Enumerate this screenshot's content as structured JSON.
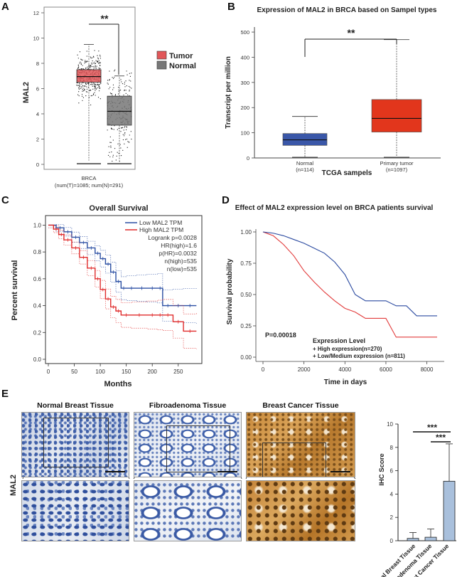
{
  "panels": {
    "A": {
      "label": "A",
      "ylabel": "MAL2",
      "yticks": [
        "0",
        "2",
        "4",
        "6",
        "8",
        "10",
        "12"
      ],
      "sig": "**",
      "xlabel": "BRCA",
      "xsub": "(num(T)=1085; num(N)=291)",
      "legend": [
        {
          "name": "Tumor",
          "color": "#e15759"
        },
        {
          "name": "Normal",
          "color": "#777777"
        }
      ]
    },
    "B": {
      "label": "B",
      "title": "Expression of MAL2 in BRCA based on Sampel types",
      "ylabel": "Transcript per million",
      "yticks": [
        "0",
        "100",
        "200",
        "300",
        "400",
        "500"
      ],
      "sig": "**",
      "categories": [
        "Normal",
        "Primary tumor"
      ],
      "counts": [
        "(n=114)",
        "(n=1097)"
      ],
      "xlabel": "TCGA sampels"
    },
    "C": {
      "label": "C",
      "title": "Overall Survival",
      "ylabel": "Percent survival",
      "xlabel": "Months",
      "xticks": [
        "0",
        "50",
        "100",
        "150",
        "200",
        "250"
      ],
      "yticks": [
        "0.0",
        "0.2",
        "0.4",
        "0.6",
        "0.8",
        "1.0"
      ],
      "legend": [
        "Low MAL2 TPM",
        "High MAL2 TPM"
      ],
      "stats": [
        "Logrank p=0.0028",
        "HR(high)=1.6",
        "p(HR)=0.0032",
        "n(high)=535",
        "n(low)=535"
      ]
    },
    "D": {
      "label": "D",
      "title": "Effect of MAL2 expression level on BRCA patients survival",
      "ylabel": "Survival probability",
      "xlabel": "Time in days",
      "xticks": [
        "0",
        "2000",
        "4000",
        "6000",
        "8000"
      ],
      "yticks": [
        "0.00",
        "0.25",
        "0.50",
        "0.75",
        "1.00"
      ],
      "pvalue": "P=0.00018",
      "legend_title": "Expression Level",
      "legend": [
        "+ High expression(n=270)",
        "+ Low/Medium expression (n=811)"
      ]
    },
    "E": {
      "label": "E",
      "row_label": "MAL2",
      "tissues": [
        "Normal Breast Tissue",
        "Fibroadenoma Tissue",
        "Breast Cancer Tissue"
      ],
      "bar_ylabel": "IHC Score",
      "bar_yticks": [
        "0",
        "2",
        "4",
        "6",
        "8",
        "10"
      ],
      "sig1": "***",
      "sig2": "***"
    }
  },
  "colors": {
    "tumor": "#e15759",
    "normal_grey": "#777777",
    "boxB_normal": "#3a57a8",
    "boxB_tumor": "#e2361c",
    "low_blue": "#2b4fa3",
    "high_red": "#e02b2b",
    "bar_fill": "#a9c0dc"
  },
  "chart_data": [
    {
      "type": "box",
      "panel": "A",
      "categories": [
        "Tumor",
        "Normal"
      ],
      "series": [
        {
          "name": "Tumor",
          "q1": 6.5,
          "median": 6.95,
          "q3": 7.5,
          "whisker_low": 0.05,
          "whisker_high": 9.5,
          "n": 1085
        },
        {
          "name": "Normal",
          "q1": 3.1,
          "median": 4.2,
          "q3": 5.4,
          "whisker_low": 0.05,
          "whisker_high": 7.0,
          "n": 291
        }
      ],
      "ylim": [
        0,
        12
      ]
    },
    {
      "type": "box",
      "panel": "B",
      "categories": [
        "Normal",
        "Primary tumor"
      ],
      "series": [
        {
          "name": "Normal",
          "q1": 50,
          "median": 72,
          "q3": 97,
          "whisker_low": 0,
          "whisker_high": 165,
          "n": 114
        },
        {
          "name": "Primary tumor",
          "q1": 103,
          "median": 157,
          "q3": 232,
          "whisker_low": 0,
          "whisker_high": 470,
          "n": 1097
        }
      ],
      "ylim": [
        0,
        520
      ]
    },
    {
      "type": "line",
      "panel": "C",
      "xlim": [
        0,
        290
      ],
      "ylim": [
        0,
        1.05
      ],
      "series": [
        {
          "name": "Low MAL2 TPM",
          "x": [
            0,
            15,
            30,
            45,
            60,
            75,
            90,
            100,
            110,
            120,
            130,
            140,
            150,
            170,
            190,
            210,
            220,
            240,
            260,
            285
          ],
          "y": [
            1,
            0.98,
            0.95,
            0.91,
            0.87,
            0.83,
            0.79,
            0.75,
            0.71,
            0.65,
            0.58,
            0.53,
            0.53,
            0.53,
            0.53,
            0.53,
            0.4,
            0.4,
            0.4,
            0.4
          ]
        },
        {
          "name": "High MAL2 TPM",
          "x": [
            0,
            10,
            20,
            30,
            45,
            60,
            75,
            90,
            100,
            110,
            120,
            130,
            140,
            160,
            190,
            210,
            220,
            240,
            260,
            285
          ],
          "y": [
            1,
            0.97,
            0.93,
            0.89,
            0.83,
            0.76,
            0.68,
            0.6,
            0.52,
            0.45,
            0.39,
            0.36,
            0.33,
            0.33,
            0.33,
            0.33,
            0.33,
            0.28,
            0.21,
            0.21
          ]
        }
      ]
    },
    {
      "type": "line",
      "panel": "D",
      "xlim": [
        0,
        8500
      ],
      "ylim": [
        0,
        1
      ],
      "series": [
        {
          "name": "High expression(n=270)",
          "x": [
            0,
            500,
            1000,
            1500,
            2000,
            2500,
            3000,
            3500,
            4000,
            4500,
            5000,
            6000,
            6500,
            7000,
            8500
          ],
          "y": [
            1,
            0.97,
            0.9,
            0.81,
            0.69,
            0.6,
            0.52,
            0.45,
            0.39,
            0.36,
            0.31,
            0.31,
            0.16,
            0.16,
            0.16
          ]
        },
        {
          "name": "Low/Medium expression (n=811)",
          "x": [
            0,
            500,
            1000,
            1500,
            2000,
            2500,
            3000,
            3500,
            4000,
            4500,
            5000,
            5500,
            6000,
            6500,
            7000,
            7500,
            8500
          ],
          "y": [
            1,
            0.99,
            0.97,
            0.94,
            0.91,
            0.87,
            0.83,
            0.76,
            0.66,
            0.5,
            0.45,
            0.45,
            0.45,
            0.41,
            0.41,
            0.33,
            0.33
          ]
        }
      ]
    },
    {
      "type": "bar",
      "panel": "E",
      "categories": [
        "Normal Breast Tissue",
        "Fibroadenoma Tissue",
        "Breast Cancer Tissue"
      ],
      "values": [
        0.2,
        0.3,
        5.1
      ],
      "errors": [
        0.5,
        0.7,
        3.2
      ],
      "ylabel": "IHC Score",
      "ylim": [
        0,
        10
      ]
    }
  ]
}
